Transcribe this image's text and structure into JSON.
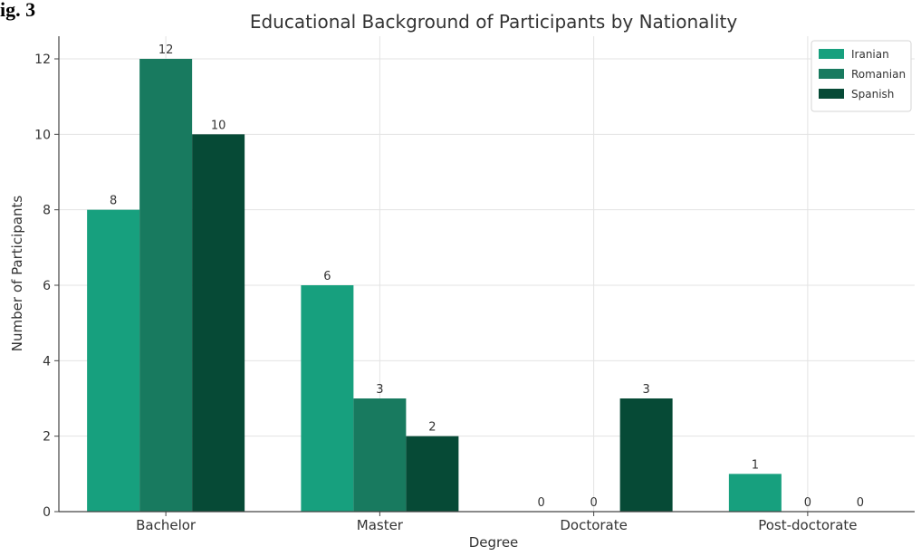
{
  "figure_label": "ig. 3",
  "chart_data": {
    "type": "bar",
    "title": "Educational Background of Participants by Nationality",
    "xlabel": "Degree",
    "ylabel": "Number of Participants",
    "categories": [
      "Bachelor",
      "Master",
      "Doctorate",
      "Post-doctorate"
    ],
    "series": [
      {
        "name": "Iranian",
        "values": [
          8,
          6,
          0,
          1
        ],
        "color": "#17a07e"
      },
      {
        "name": "Romanian",
        "values": [
          12,
          3,
          0,
          0
        ],
        "color": "#187a5f"
      },
      {
        "name": "Spanish",
        "values": [
          10,
          2,
          3,
          0
        ],
        "color": "#064a36"
      }
    ],
    "ylim": [
      0,
      12.6
    ],
    "yticks": [
      0,
      2,
      4,
      6,
      8,
      10,
      12
    ],
    "grid": true,
    "legend": "top-right",
    "data_labels": true
  }
}
